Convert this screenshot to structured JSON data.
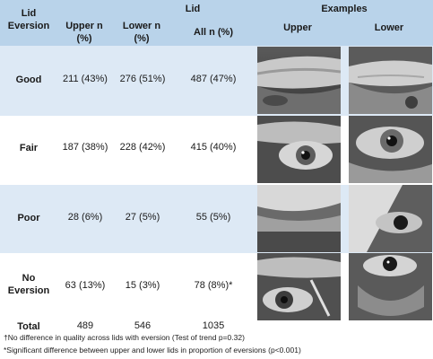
{
  "header": {
    "lid_eversion": [
      "Lid",
      "Eversion"
    ],
    "lid_group": "Lid",
    "examples_group": "Examples",
    "upper_n": [
      "Upper n",
      "(%)"
    ],
    "lower_n": [
      "Lower n",
      "(%)"
    ],
    "all_n": "All n (%)",
    "ex_upper": "Upper",
    "ex_lower": "Lower"
  },
  "rows": [
    {
      "label": [
        "Good"
      ],
      "upper": "211 (43%)",
      "lower": "276 (51%)",
      "all": "487 (47%)"
    },
    {
      "label": [
        "Fair"
      ],
      "upper": "187 (38%)",
      "lower": "228 (42%)",
      "all": "415 (40%)"
    },
    {
      "label": [
        "Poor"
      ],
      "upper": "28 (6%)",
      "lower": "27 (5%)",
      "all": "55 (5%)"
    },
    {
      "label": [
        "No",
        "Eversion"
      ],
      "upper": "63 (13%)",
      "lower": "15 (3%)",
      "all": "78 (8%)*"
    }
  ],
  "total": {
    "label": "Total",
    "upper": "489",
    "lower": "546",
    "all": "1035"
  },
  "footnotes": [
    "†No difference in quality across lids with eversion (Test of trend p=0.32)",
    "*Significant difference between upper and lower lids in proportion of eversions (p<0.001)"
  ],
  "photos": [
    "everted-upper-eyelid-good-photo",
    "everted-lower-eyelid-good-photo",
    "everted-upper-eyelid-fair-photo",
    "everted-lower-eyelid-fair-photo",
    "everted-upper-eyelid-poor-photo",
    "everted-lower-eyelid-poor-photo",
    "upper-eyelid-no-eversion-photo",
    "lower-eyelid-no-eversion-photo"
  ]
}
